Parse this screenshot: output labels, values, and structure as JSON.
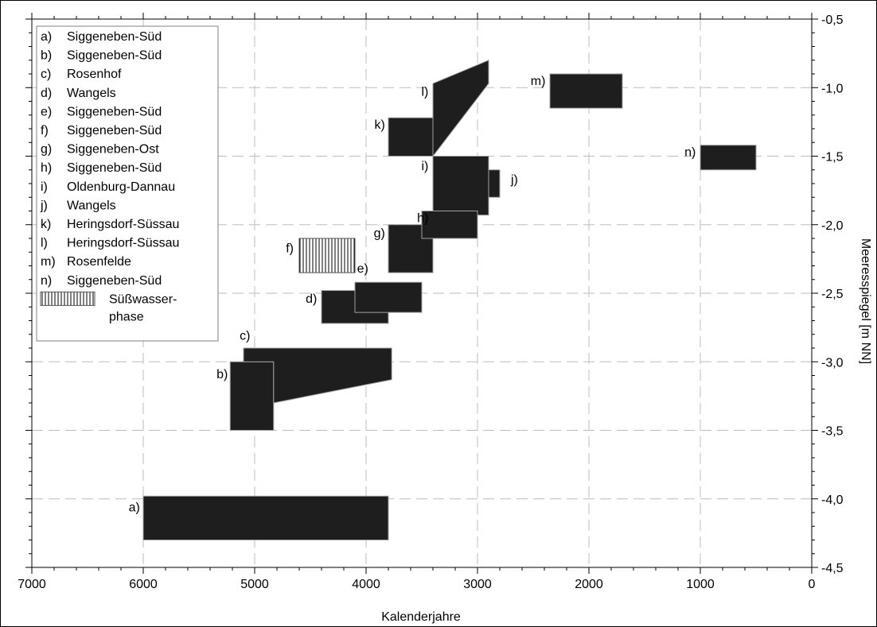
{
  "chart_data": {
    "type": "range-boxes",
    "xlabel": "Kalenderjahre",
    "ylabel": "Meeresspiegel [m NN]",
    "xlim": [
      7000,
      0
    ],
    "ylim": [
      -4.5,
      -0.5
    ],
    "x_ticks": [
      "7000",
      "6000",
      "5000",
      "4000",
      "3000",
      "2000",
      "1000",
      "0"
    ],
    "x_tick_values": [
      7000,
      6000,
      5000,
      4000,
      3000,
      2000,
      1000,
      0
    ],
    "y_ticks": [
      "-0,5",
      "-1,0",
      "-1,5",
      "-2,0",
      "-2,5",
      "-3,0",
      "-3,5",
      "-4,0",
      "-4,5"
    ],
    "y_tick_values": [
      -0.5,
      -1.0,
      -1.5,
      -2.0,
      -2.5,
      -3.0,
      -3.5,
      -4.0,
      -4.5
    ],
    "grid": true,
    "legend_position": "top-left",
    "legend": [
      {
        "key": "a)",
        "site": "Siggeneben-Süd"
      },
      {
        "key": "b)",
        "site": "Siggeneben-Süd"
      },
      {
        "key": "c)",
        "site": "Rosenhof"
      },
      {
        "key": "d)",
        "site": "Wangels"
      },
      {
        "key": "e)",
        "site": "Siggeneben-Süd"
      },
      {
        "key": "f)",
        "site": "Siggeneben-Süd"
      },
      {
        "key": "g)",
        "site": "Siggeneben-Ost"
      },
      {
        "key": "h)",
        "site": "Siggeneben-Süd"
      },
      {
        "key": "i)",
        "site": "Oldenburg-Dannau"
      },
      {
        "key": "j)",
        "site": "Wangels"
      },
      {
        "key": "k)",
        "site": "Heringsdorf-Süssau"
      },
      {
        "key": "l)",
        "site": "Heringsdorf-Süssau"
      },
      {
        "key": "m)",
        "site": "Rosenfelde"
      },
      {
        "key": "n)",
        "site": "Siggeneben-Süd"
      }
    ],
    "legend_freshwater": {
      "line1": "Süßwasser-",
      "line2": "phase"
    },
    "boxes": [
      {
        "label": "a)",
        "x_start": 6000,
        "x_end": 3800,
        "y_top": -3.98,
        "y_bottom": -4.3,
        "freshwater": false
      },
      {
        "label": "b)",
        "x_start": 5220,
        "x_end": 4830,
        "y_top": -3.0,
        "y_bottom": -3.5,
        "freshwater": false
      },
      {
        "label": "d)",
        "x_start": 4400,
        "x_end": 3800,
        "y_top": -2.48,
        "y_bottom": -2.72,
        "freshwater": false
      },
      {
        "label": "e)",
        "x_start": 4100,
        "x_end": 3500,
        "y_top": -2.42,
        "y_bottom": -2.64,
        "freshwater": false
      },
      {
        "label": "f)",
        "x_start": 4600,
        "x_end": 4100,
        "y_top": -2.1,
        "y_bottom": -2.35,
        "freshwater": true
      },
      {
        "label": "g)",
        "x_start": 3800,
        "x_end": 3400,
        "y_top": -2.0,
        "y_bottom": -2.35,
        "freshwater": false
      },
      {
        "label": "i)",
        "x_start": 3400,
        "x_end": 2900,
        "y_top": -1.5,
        "y_bottom": -1.93,
        "freshwater": false
      },
      {
        "label": "j)",
        "x_start": 2900,
        "x_end": 2800,
        "y_top": -1.6,
        "y_bottom": -1.8,
        "freshwater": false
      },
      {
        "label": "h)",
        "x_start": 3500,
        "x_end": 3000,
        "y_top": -1.9,
        "y_bottom": -2.1,
        "freshwater": false
      },
      {
        "label": "k)",
        "x_start": 3800,
        "x_end": 3400,
        "y_top": -1.22,
        "y_bottom": -1.5,
        "freshwater": false
      },
      {
        "label": "m)",
        "x_start": 2350,
        "x_end": 1700,
        "y_top": -0.9,
        "y_bottom": -1.15,
        "freshwater": false
      },
      {
        "label": "n)",
        "x_start": 1000,
        "x_end": 500,
        "y_top": -1.42,
        "y_bottom": -1.6,
        "freshwater": false
      }
    ],
    "polygons": [
      {
        "label": "c)",
        "points": [
          [
            5100,
            -2.9
          ],
          [
            3770,
            -2.9
          ],
          [
            3770,
            -3.13
          ],
          [
            4830,
            -3.3
          ],
          [
            4830,
            -3.0
          ],
          [
            5100,
            -3.0
          ]
        ]
      },
      {
        "label": "l)",
        "points": [
          [
            3400,
            -0.97
          ],
          [
            2900,
            -0.8
          ],
          [
            2900,
            -0.97
          ],
          [
            3400,
            -1.5
          ]
        ]
      }
    ]
  }
}
